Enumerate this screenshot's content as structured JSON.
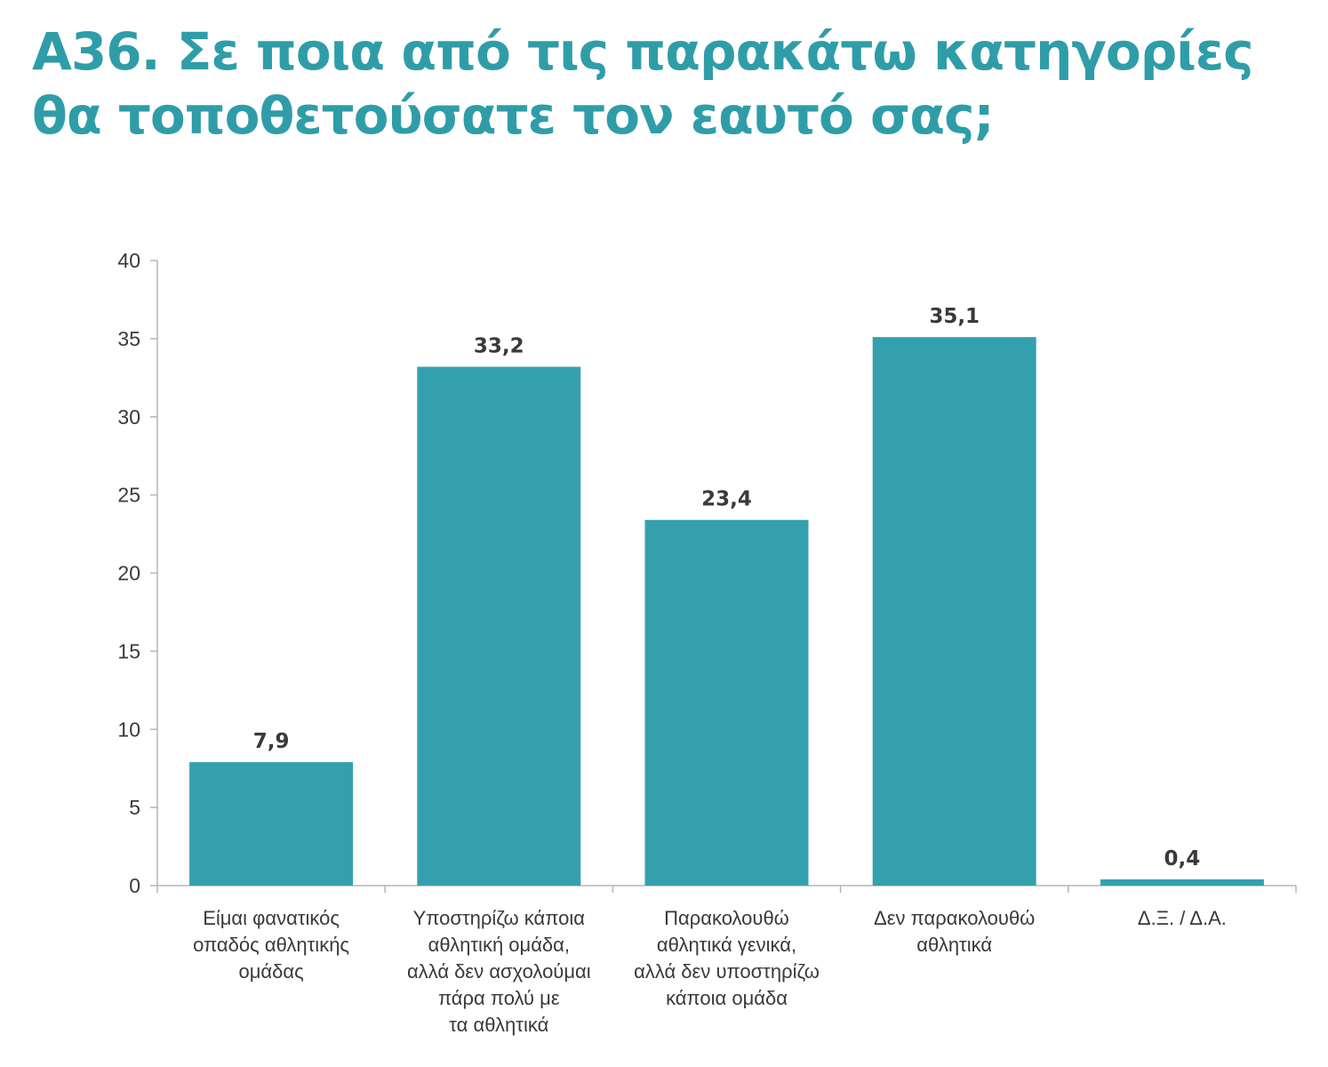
{
  "title_lines": [
    "Α36. Σε ποια από τις παρακάτω κατηγορίες",
    "θα τοποθετούσατε τον εαυτό σας;"
  ],
  "colors": {
    "accent": "#2f9da8",
    "bar": "#35a0ad",
    "axis": "#b5b5b5",
    "text": "#3a3a3a"
  },
  "chart_data": {
    "type": "bar",
    "title": "Α36. Σε ποια από τις παρακάτω κατηγορίες θα τοποθετούσατε τον εαυτό σας;",
    "xlabel": "",
    "ylabel": "",
    "ylim": [
      0,
      40
    ],
    "yticks": [
      0,
      5,
      10,
      15,
      20,
      25,
      30,
      35,
      40
    ],
    "grid": false,
    "legend": "none",
    "categories": [
      [
        "Είμαι φανατικός",
        "οπαδός αθλητικής",
        "ομάδας"
      ],
      [
        "Υποστηρίζω κάποια",
        "αθλητική ομάδα,",
        "αλλά δεν ασχολούμαι",
        "πάρα πολύ με",
        "τα αθλητικά"
      ],
      [
        "Παρακολουθώ",
        "αθλητικά γενικά,",
        "αλλά δεν υποστηρίζω",
        "κάποια ομάδα"
      ],
      [
        "Δεν παρακολουθώ",
        "αθλητικά"
      ],
      [
        "Δ.Ξ. / Δ.Α."
      ]
    ],
    "values": [
      7.9,
      33.2,
      23.4,
      35.1,
      0.4
    ],
    "value_labels": [
      "7,9",
      "33,2",
      "23,4",
      "35,1",
      "0,4"
    ]
  }
}
